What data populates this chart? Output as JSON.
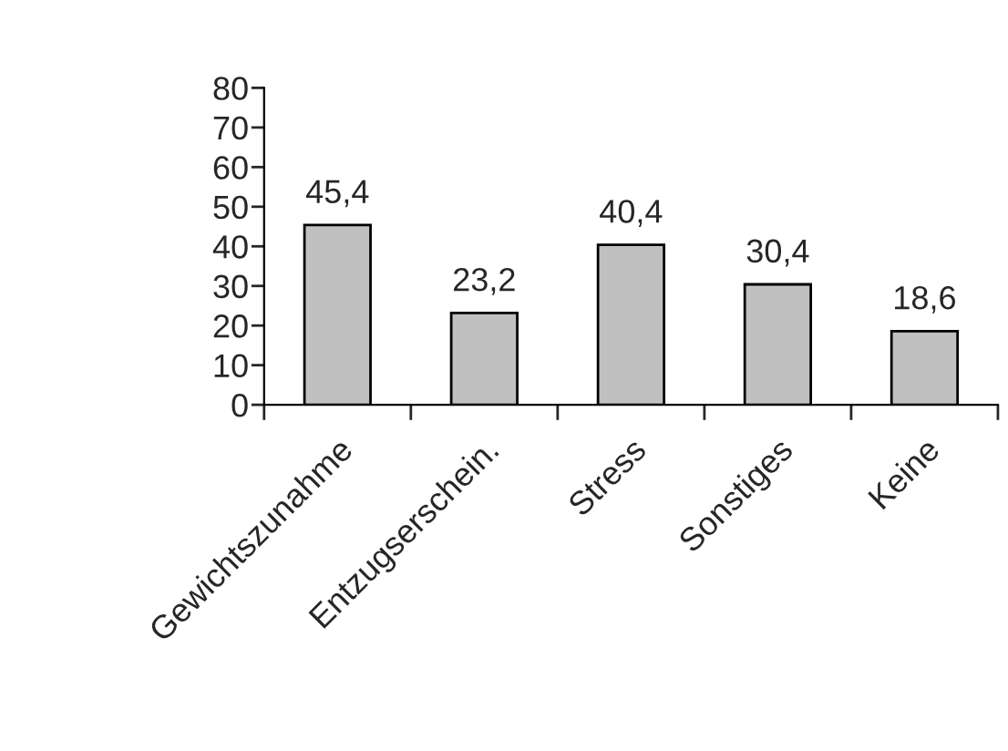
{
  "chart_data": {
    "type": "bar",
    "categories": [
      "Gewichtszunahme",
      "Entzugserschein.",
      "Stress",
      "Sonstiges",
      "Keine"
    ],
    "values": [
      45.4,
      23.2,
      40.4,
      30.4,
      18.6
    ],
    "value_labels": [
      "45,4",
      "23,2",
      "40,4",
      "30,4",
      "18,6"
    ],
    "color": "#c0c0c0",
    "ylim": [
      0,
      80
    ],
    "yticks": [
      0,
      10,
      20,
      30,
      40,
      50,
      60,
      70,
      80
    ],
    "grid": false,
    "legend": false
  }
}
